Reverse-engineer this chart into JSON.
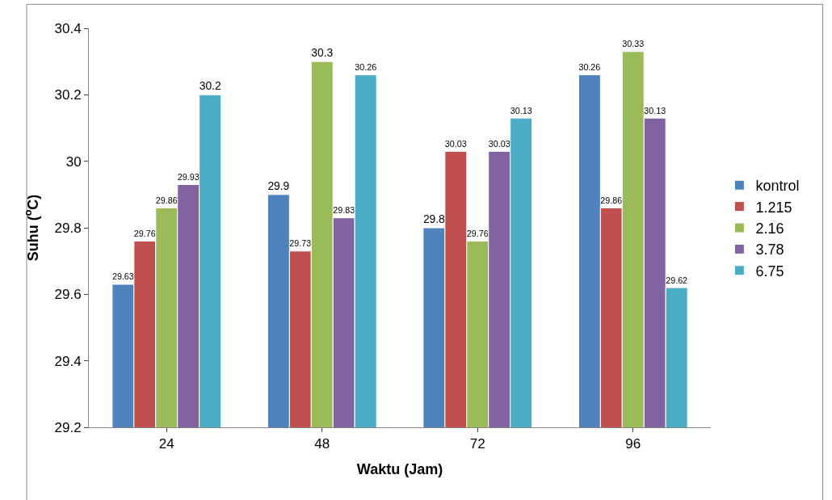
{
  "chart_data": {
    "type": "bar",
    "xlabel": "Waktu (Jam)",
    "ylabel": "Suhu ($^{o}$C)",
    "categories": [
      "24",
      "48",
      "72",
      "96"
    ],
    "series": [
      {
        "name": "kontrol",
        "color": "#4f81bd",
        "values": [
          29.63,
          29.9,
          29.8,
          30.26
        ]
      },
      {
        "name": "1.215",
        "color": "#c0504d",
        "values": [
          29.76,
          29.73,
          30.03,
          29.86
        ]
      },
      {
        "name": "2.16",
        "color": "#9bbb59",
        "values": [
          29.86,
          30.3,
          29.76,
          30.33
        ]
      },
      {
        "name": "3.78",
        "color": "#8064a2",
        "values": [
          29.93,
          29.83,
          30.03,
          30.13
        ]
      },
      {
        "name": "6.75",
        "color": "#4bacc6",
        "values": [
          30.2,
          30.26,
          30.13,
          29.62
        ]
      }
    ],
    "ylim": [
      29.2,
      30.4
    ],
    "yticks": [
      29.2,
      29.4,
      29.6,
      29.8,
      30,
      30.2,
      30.4
    ],
    "data_labels": true,
    "grid": false,
    "legend": "right"
  }
}
